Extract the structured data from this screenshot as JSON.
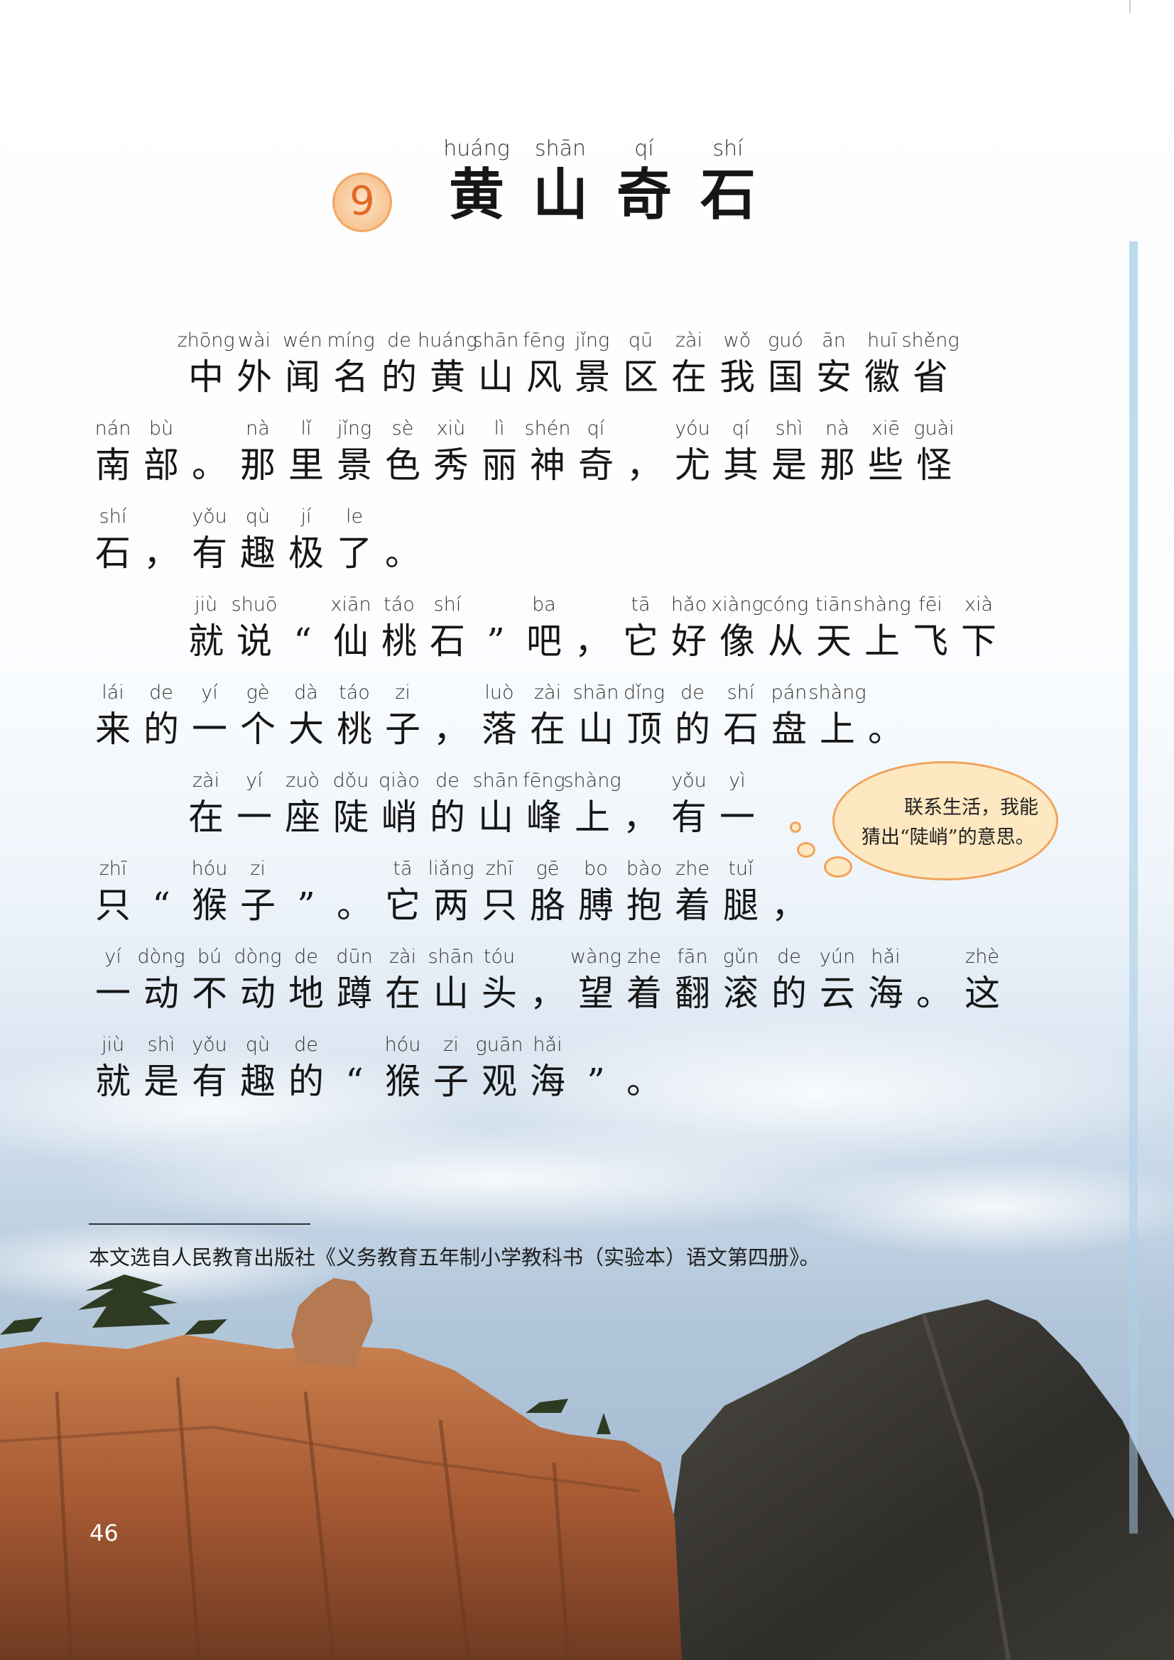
{
  "lesson": {
    "number": "9",
    "title": [
      {
        "py": "huáng",
        "hz": "黄"
      },
      {
        "py": "shān",
        "hz": "山"
      },
      {
        "py": "qí",
        "hz": "奇"
      },
      {
        "py": "shí",
        "hz": "石"
      }
    ]
  },
  "text_lines": [
    {
      "indent": true,
      "units": [
        {
          "py": "zhōng",
          "hz": "中"
        },
        {
          "py": "wài",
          "hz": "外"
        },
        {
          "py": "wén",
          "hz": "闻"
        },
        {
          "py": "míng",
          "hz": "名"
        },
        {
          "py": "de",
          "hz": "的"
        },
        {
          "py": "huáng",
          "hz": "黄"
        },
        {
          "py": "shān",
          "hz": "山"
        },
        {
          "py": "fēng",
          "hz": "风"
        },
        {
          "py": "jǐng",
          "hz": "景"
        },
        {
          "py": "qū",
          "hz": "区"
        },
        {
          "py": "zài",
          "hz": "在"
        },
        {
          "py": "wǒ",
          "hz": "我"
        },
        {
          "py": "guó",
          "hz": "国"
        },
        {
          "py": "ān",
          "hz": "安"
        },
        {
          "py": "huī",
          "hz": "徽"
        },
        {
          "py": "shěng",
          "hz": "省"
        }
      ]
    },
    {
      "indent": false,
      "units": [
        {
          "py": "nán",
          "hz": "南"
        },
        {
          "py": "bù",
          "hz": "部"
        },
        {
          "py": "",
          "hz": "。"
        },
        {
          "py": "nà",
          "hz": "那"
        },
        {
          "py": "lǐ",
          "hz": "里"
        },
        {
          "py": "jǐng",
          "hz": "景"
        },
        {
          "py": "sè",
          "hz": "色"
        },
        {
          "py": "xiù",
          "hz": "秀"
        },
        {
          "py": "lì",
          "hz": "丽"
        },
        {
          "py": "shén",
          "hz": "神"
        },
        {
          "py": "qí",
          "hz": "奇"
        },
        {
          "py": "",
          "hz": "，"
        },
        {
          "py": "yóu",
          "hz": "尤"
        },
        {
          "py": "qí",
          "hz": "其"
        },
        {
          "py": "shì",
          "hz": "是"
        },
        {
          "py": "nà",
          "hz": "那"
        },
        {
          "py": "xiē",
          "hz": "些"
        },
        {
          "py": "guài",
          "hz": "怪"
        }
      ]
    },
    {
      "indent": false,
      "units": [
        {
          "py": "shí",
          "hz": "石"
        },
        {
          "py": "",
          "hz": "，"
        },
        {
          "py": "yǒu",
          "hz": "有"
        },
        {
          "py": "qù",
          "hz": "趣"
        },
        {
          "py": "jí",
          "hz": "极"
        },
        {
          "py": "le",
          "hz": "了"
        },
        {
          "py": "",
          "hz": "。"
        }
      ]
    },
    {
      "indent": true,
      "units": [
        {
          "py": "jiù",
          "hz": "就"
        },
        {
          "py": "shuō",
          "hz": "说"
        },
        {
          "py": "",
          "hz": "“"
        },
        {
          "py": "xiān",
          "hz": "仙"
        },
        {
          "py": "táo",
          "hz": "桃"
        },
        {
          "py": "shí",
          "hz": "石"
        },
        {
          "py": "",
          "hz": "”"
        },
        {
          "py": "ba",
          "hz": "吧"
        },
        {
          "py": "",
          "hz": "，"
        },
        {
          "py": "tā",
          "hz": "它"
        },
        {
          "py": "hǎo",
          "hz": "好"
        },
        {
          "py": "xiàng",
          "hz": "像"
        },
        {
          "py": "cóng",
          "hz": "从"
        },
        {
          "py": "tiān",
          "hz": "天"
        },
        {
          "py": "shàng",
          "hz": "上"
        },
        {
          "py": "fēi",
          "hz": "飞"
        },
        {
          "py": "xià",
          "hz": "下"
        }
      ]
    },
    {
      "indent": false,
      "units": [
        {
          "py": "lái",
          "hz": "来"
        },
        {
          "py": "de",
          "hz": "的"
        },
        {
          "py": "yí",
          "hz": "一"
        },
        {
          "py": "gè",
          "hz": "个"
        },
        {
          "py": "dà",
          "hz": "大"
        },
        {
          "py": "táo",
          "hz": "桃"
        },
        {
          "py": "zi",
          "hz": "子"
        },
        {
          "py": "",
          "hz": "，"
        },
        {
          "py": "luò",
          "hz": "落"
        },
        {
          "py": "zài",
          "hz": "在"
        },
        {
          "py": "shān",
          "hz": "山"
        },
        {
          "py": "dǐng",
          "hz": "顶"
        },
        {
          "py": "de",
          "hz": "的"
        },
        {
          "py": "shí",
          "hz": "石"
        },
        {
          "py": "pán",
          "hz": "盘"
        },
        {
          "py": "shàng",
          "hz": "上"
        },
        {
          "py": "",
          "hz": "。"
        }
      ]
    },
    {
      "indent": true,
      "units": [
        {
          "py": "zài",
          "hz": "在"
        },
        {
          "py": "yí",
          "hz": "一"
        },
        {
          "py": "zuò",
          "hz": "座"
        },
        {
          "py": "dǒu",
          "hz": "陡"
        },
        {
          "py": "qiào",
          "hz": "峭"
        },
        {
          "py": "de",
          "hz": "的"
        },
        {
          "py": "shān",
          "hz": "山"
        },
        {
          "py": "fēng",
          "hz": "峰"
        },
        {
          "py": "shàng",
          "hz": "上"
        },
        {
          "py": "",
          "hz": "，"
        },
        {
          "py": "yǒu",
          "hz": "有"
        },
        {
          "py": "yì",
          "hz": "一"
        }
      ]
    },
    {
      "indent": false,
      "units": [
        {
          "py": "zhī",
          "hz": "只"
        },
        {
          "py": "",
          "hz": "“"
        },
        {
          "py": "hóu",
          "hz": "猴"
        },
        {
          "py": "zi",
          "hz": "子"
        },
        {
          "py": "",
          "hz": "”"
        },
        {
          "py": "",
          "hz": "。"
        },
        {
          "py": "tā",
          "hz": "它"
        },
        {
          "py": "liǎng",
          "hz": "两"
        },
        {
          "py": "zhī",
          "hz": "只"
        },
        {
          "py": "gē",
          "hz": "胳"
        },
        {
          "py": "bo",
          "hz": "膊"
        },
        {
          "py": "bào",
          "hz": "抱"
        },
        {
          "py": "zhe",
          "hz": "着"
        },
        {
          "py": "tuǐ",
          "hz": "腿"
        },
        {
          "py": "",
          "hz": "，"
        }
      ]
    },
    {
      "indent": false,
      "units": [
        {
          "py": "yí",
          "hz": "一"
        },
        {
          "py": "dòng",
          "hz": "动"
        },
        {
          "py": "bú",
          "hz": "不"
        },
        {
          "py": "dòng",
          "hz": "动"
        },
        {
          "py": "de",
          "hz": "地"
        },
        {
          "py": "dūn",
          "hz": "蹲"
        },
        {
          "py": "zài",
          "hz": "在"
        },
        {
          "py": "shān",
          "hz": "山"
        },
        {
          "py": "tóu",
          "hz": "头"
        },
        {
          "py": "",
          "hz": "，"
        },
        {
          "py": "wàng",
          "hz": "望"
        },
        {
          "py": "zhe",
          "hz": "着"
        },
        {
          "py": "fān",
          "hz": "翻"
        },
        {
          "py": "gǔn",
          "hz": "滚"
        },
        {
          "py": "de",
          "hz": "的"
        },
        {
          "py": "yún",
          "hz": "云"
        },
        {
          "py": "hǎi",
          "hz": "海"
        },
        {
          "py": "",
          "hz": "。"
        },
        {
          "py": "zhè",
          "hz": "这"
        }
      ]
    },
    {
      "indent": false,
      "units": [
        {
          "py": "jiù",
          "hz": "就"
        },
        {
          "py": "shì",
          "hz": "是"
        },
        {
          "py": "yǒu",
          "hz": "有"
        },
        {
          "py": "qù",
          "hz": "趣"
        },
        {
          "py": "de",
          "hz": "的"
        },
        {
          "py": "",
          "hz": "“"
        },
        {
          "py": "hóu",
          "hz": "猴"
        },
        {
          "py": "zi",
          "hz": "子"
        },
        {
          "py": "guān",
          "hz": "观"
        },
        {
          "py": "hǎi",
          "hz": "海"
        },
        {
          "py": "",
          "hz": "”"
        },
        {
          "py": "",
          "hz": "。"
        }
      ]
    }
  ],
  "side_note": "联系生活，我能猜出“陡峭”的意思。",
  "source_note": "本文选自人民教育出版社《义务教育五年制小学教科书（实验本）语文第四册》。",
  "page_number": "46",
  "colors": {
    "accent_orange": "#f0a35a",
    "bubble_fill": "#fde8c2",
    "rock": "#b86a3c",
    "sky": "#a6bcd2"
  }
}
